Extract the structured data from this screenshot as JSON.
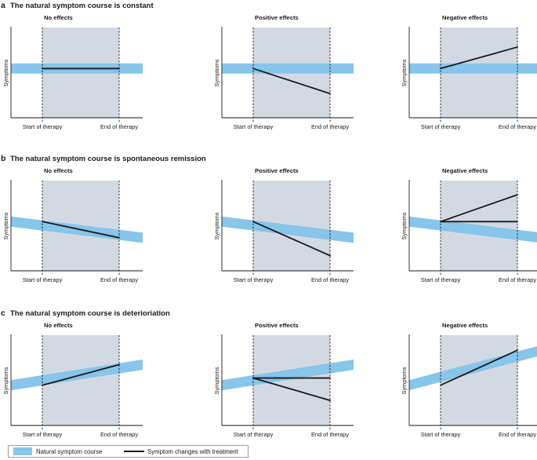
{
  "colors": {
    "therapy_bg": "#d3d9e3",
    "natural_band": "#87c5ea",
    "treatment_line": "#1a1a1a",
    "axis": "#1a1a1a"
  },
  "axis_labels": {
    "y": "Symptoms",
    "start": "Start of therapy",
    "end": "End of therapy"
  },
  "sections": [
    {
      "letter": "a",
      "title": "The natural symptom course is constant",
      "panels": [
        {
          "title": "No effects",
          "band": [
            0.55,
            0.55
          ],
          "lines": [
            [
              0.55,
              0.55
            ]
          ]
        },
        {
          "title": "Positive effects",
          "band": [
            0.55,
            0.55
          ],
          "lines": [
            [
              0.55,
              0.27
            ]
          ]
        },
        {
          "title": "Negative effects",
          "band": [
            0.55,
            0.55
          ],
          "lines": [
            [
              0.55,
              0.79
            ]
          ]
        }
      ]
    },
    {
      "letter": "b",
      "title": "The natural symptom course is spontaneous remission",
      "panels": [
        {
          "title": "No effects",
          "band": [
            0.55,
            0.37
          ],
          "lines": [
            [
              0.55,
              0.37
            ]
          ]
        },
        {
          "title": "Positive effects",
          "band": [
            0.55,
            0.37
          ],
          "lines": [
            [
              0.55,
              0.17
            ]
          ]
        },
        {
          "title": "Negative effects",
          "band": [
            0.55,
            0.37
          ],
          "lines": [
            [
              0.55,
              0.55
            ],
            [
              0.55,
              0.85
            ]
          ]
        }
      ]
    },
    {
      "letter": "c",
      "title": "The natural symptom course is deterioriation",
      "panels": [
        {
          "title": "No effects",
          "band": [
            0.45,
            0.68
          ],
          "lines": [
            [
              0.45,
              0.68
            ]
          ]
        },
        {
          "title": "Positive effects",
          "band": [
            0.45,
            0.68
          ],
          "lines": [
            [
              0.53,
              0.53
            ],
            [
              0.53,
              0.28
            ]
          ]
        },
        {
          "title": "Negative effects",
          "band": [
            0.45,
            0.84
          ],
          "lines": [
            [
              0.45,
              0.84
            ]
          ]
        }
      ]
    }
  ],
  "legend": {
    "natural": "Natural symptom course",
    "treatment": "Symptom changes with treatment"
  }
}
